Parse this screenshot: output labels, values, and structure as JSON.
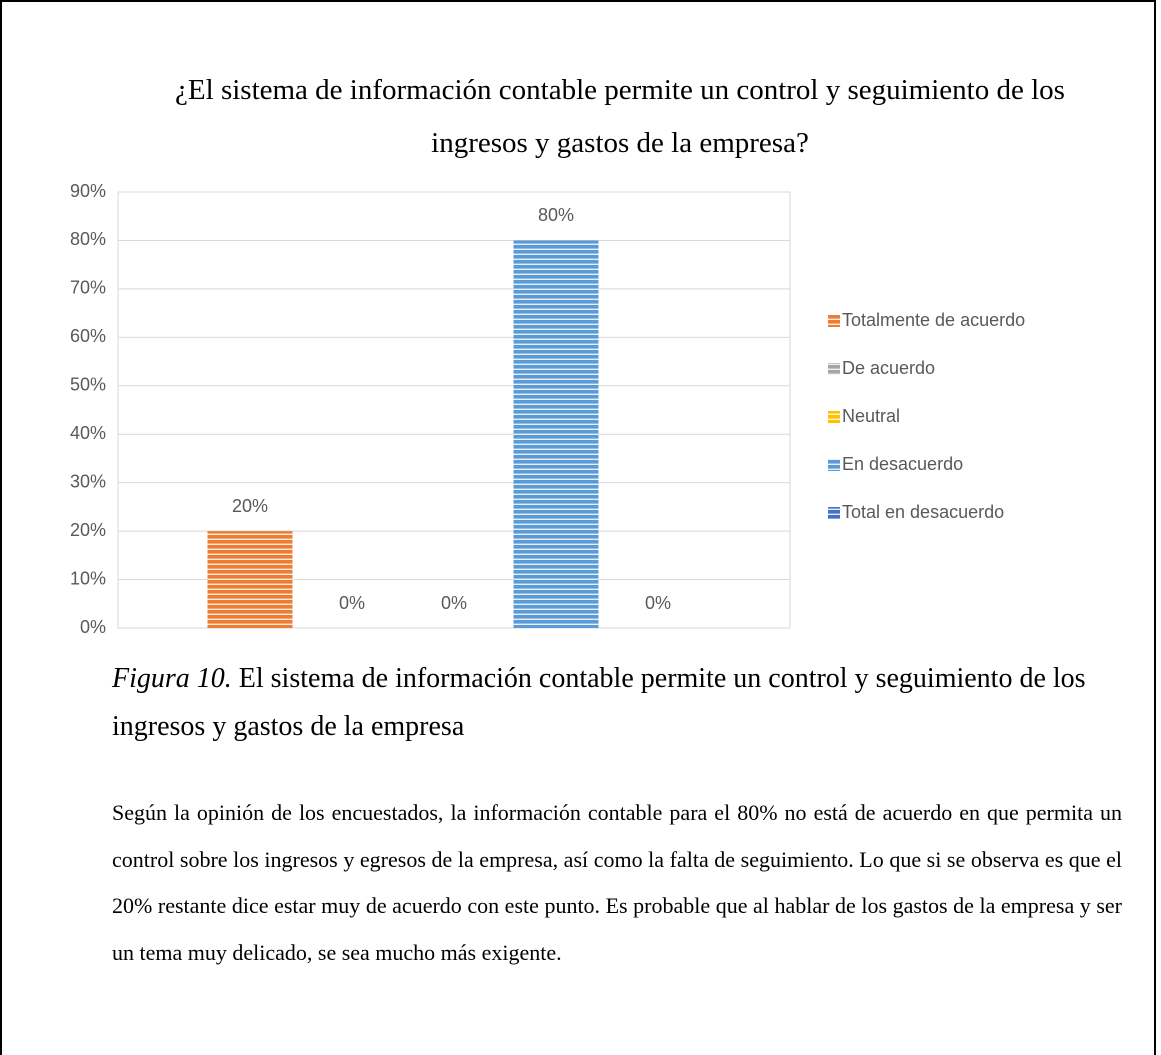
{
  "chart_data": {
    "type": "bar",
    "title": "¿El sistema de información contable permite un control y seguimiento de los ingresos y gastos de la empresa?",
    "categories": [
      null
    ],
    "series": [
      {
        "name": "Totalmente de acuerdo",
        "color": "#ed7d31",
        "values": [
          20
        ],
        "value_labels": [
          "20%"
        ]
      },
      {
        "name": "De acuerdo",
        "color": "#a5a5a5",
        "values": [
          0
        ],
        "value_labels": [
          "0%"
        ]
      },
      {
        "name": "Neutral",
        "color": "#ffc000",
        "values": [
          0
        ],
        "value_labels": [
          "0%"
        ]
      },
      {
        "name": "En desacuerdo",
        "color": "#5b9bd5",
        "values": [
          80
        ],
        "value_labels": [
          "80%"
        ]
      },
      {
        "name": "Total en desacuerdo",
        "color": "#4472c4",
        "values": [
          0
        ],
        "value_labels": [
          "0%"
        ]
      }
    ],
    "ylim": [
      0,
      90
    ],
    "yticks": [
      {
        "value": 0,
        "label": "0%"
      },
      {
        "value": 10,
        "label": "10%"
      },
      {
        "value": 20,
        "label": "20%"
      },
      {
        "value": 30,
        "label": "30%"
      },
      {
        "value": 40,
        "label": "40%"
      },
      {
        "value": 50,
        "label": "50%"
      },
      {
        "value": 60,
        "label": "60%"
      },
      {
        "value": 70,
        "label": "70%"
      },
      {
        "value": 80,
        "label": "80%"
      },
      {
        "value": 90,
        "label": "90%"
      }
    ],
    "grid": true,
    "legend": "right"
  },
  "caption": {
    "label": "Figura 10.",
    "text": " El sistema de información contable permite un control y seguimiento de los ingresos y gastos de la empresa"
  },
  "paragraph": "Según la opinión de los encuestados, la información contable para el 80% no está de acuerdo en que permita un control sobre los ingresos y egresos de la empresa, así como la falta de seguimiento. Lo que si se observa es que el 20% restante dice estar muy de acuerdo con este punto. Es probable que al hablar de los gastos de la empresa y ser un tema muy delicado, se sea mucho más exigente."
}
